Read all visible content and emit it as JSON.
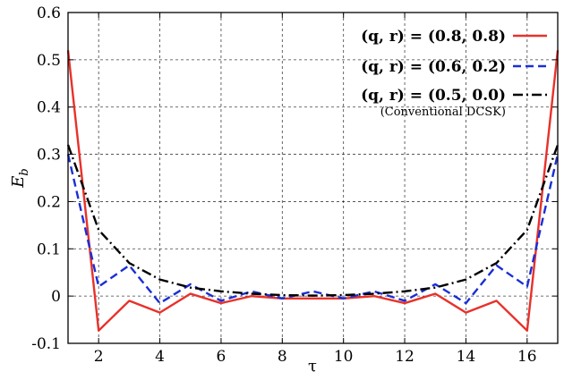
{
  "chart_data": {
    "type": "line",
    "xlabel": "τ",
    "ylabel": "E_b",
    "ylabel_main": "E",
    "ylabel_sub": "b",
    "xlim": [
      1,
      17
    ],
    "ylim": [
      -0.1,
      0.6
    ],
    "xticks": [
      2,
      4,
      6,
      8,
      10,
      12,
      14,
      16
    ],
    "xtick_labels": [
      "2",
      "4",
      "6",
      "8",
      "10",
      "12",
      "14",
      "16"
    ],
    "yticks": [
      -0.1,
      0,
      0.1,
      0.2,
      0.3,
      0.4,
      0.5,
      0.6
    ],
    "ytick_labels": [
      "-0.1",
      "0",
      "0.1",
      "0.2",
      "0.3",
      "0.4",
      "0.5",
      "0.6"
    ],
    "grid": true,
    "legend_position": "top-right",
    "x": [
      1,
      2,
      3,
      4,
      5,
      6,
      7,
      8,
      9,
      10,
      11,
      12,
      13,
      14,
      15,
      16,
      17
    ],
    "series": [
      {
        "name": "(q, r) = (0.8, 0.8)",
        "color": "#e8312a",
        "style": "solid",
        "values": [
          0.52,
          -0.073,
          -0.01,
          -0.035,
          0.005,
          -0.015,
          0.0,
          -0.005,
          -0.005,
          -0.005,
          0.0,
          -0.015,
          0.005,
          -0.035,
          -0.01,
          -0.073,
          0.52
        ]
      },
      {
        "name": "(q, r) = (0.6, 0.2)",
        "color": "#1a2fd6",
        "style": "dashed",
        "values": [
          0.3,
          0.02,
          0.065,
          -0.015,
          0.025,
          -0.01,
          0.01,
          -0.005,
          0.01,
          -0.005,
          0.01,
          -0.01,
          0.025,
          -0.015,
          0.065,
          0.02,
          0.3
        ]
      },
      {
        "name": "(q, r) = (0.5, 0.0)",
        "note": "(Conventional DCSK)",
        "color": "#000000",
        "style": "dashdot",
        "values": [
          0.32,
          0.14,
          0.07,
          0.035,
          0.018,
          0.01,
          0.005,
          0.002,
          0.001,
          0.002,
          0.005,
          0.01,
          0.018,
          0.035,
          0.07,
          0.14,
          0.32
        ]
      }
    ]
  }
}
